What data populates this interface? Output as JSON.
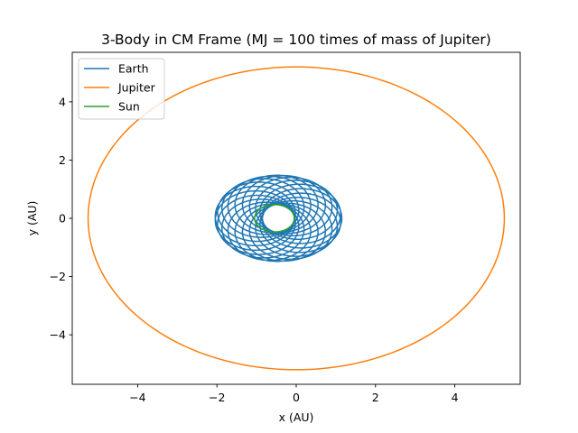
{
  "chart_data": {
    "type": "line",
    "title": "3-Body  in CM Frame (MJ = 100 times of mass of Jupiter)",
    "xlabel": "x (AU)",
    "ylabel": "y (AU)",
    "xlim": [
      -5.65,
      5.65
    ],
    "ylim": [
      -5.7,
      5.7
    ],
    "xticks": [
      -4,
      -2,
      0,
      2,
      4
    ],
    "yticks": [
      -4,
      -2,
      0,
      2,
      4
    ],
    "xtick_labels": [
      "−4",
      "−2",
      "0",
      "2",
      "4"
    ],
    "ytick_labels": [
      "−4",
      "−2",
      "0",
      "2",
      "4"
    ],
    "grid": false,
    "legend_position": "top-left",
    "series": [
      {
        "name": "Earth",
        "color": "#1f77b4",
        "kind": "precessing-orbit",
        "guiding_center": [
          -0.45,
          0.0
        ],
        "radial_x": 0.6,
        "radial_y": 0.5,
        "epicycle_radius": 1.0,
        "orbits": 20
      },
      {
        "name": "Jupiter",
        "color": "#ff7f0e",
        "kind": "ellipse",
        "center": [
          0.0,
          0.0
        ],
        "semi_x": 5.25,
        "semi_y": 5.2
      },
      {
        "name": "Sun",
        "color": "#2ca02c",
        "kind": "ellipse",
        "center": [
          -0.55,
          0.0
        ],
        "semi_x": 0.5,
        "semi_y": 0.47
      }
    ]
  }
}
